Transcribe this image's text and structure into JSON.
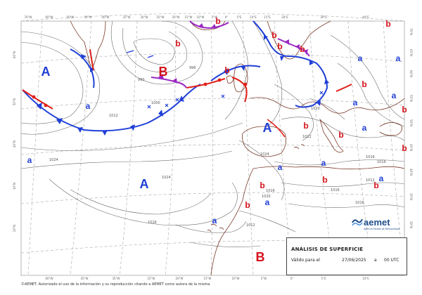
{
  "map": {
    "title": "ANÁLISIS DE SUPERFICIE",
    "valid_label": "Válido para el",
    "date": "27/06/2025",
    "at_label": "a",
    "time": "00 UTC",
    "copyright": "©AEMET. Autorizado el uso de la información y su reproducción citando a AEMET como autora de la misma",
    "logo_text": "aemet",
    "logo_sub": "Agencia Estatal de Meteorología",
    "colors": {
      "cold_front": "#1f3fd6",
      "warm_front": "#e0201a",
      "occluded_front": "#9b27c4",
      "high_label": "#1f3fd6",
      "low_label": "#d4121a",
      "coast": "#7a3a2a",
      "isobar": "#666666",
      "grid": "#9a9a9a"
    },
    "pressure_centers": [
      {
        "kind": "high",
        "text": "A"
      },
      {
        "kind": "high",
        "text": "A"
      },
      {
        "kind": "high",
        "text": "A"
      },
      {
        "kind": "low",
        "text": "B"
      },
      {
        "kind": "low",
        "text": "B"
      },
      {
        "kind": "high-small",
        "text": "a"
      },
      {
        "kind": "high-small",
        "text": "a"
      },
      {
        "kind": "high-small",
        "text": "a"
      },
      {
        "kind": "high-small",
        "text": "a"
      },
      {
        "kind": "high-small",
        "text": "a"
      },
      {
        "kind": "high-small",
        "text": "a"
      },
      {
        "kind": "high-small",
        "text": "a"
      },
      {
        "kind": "high-small",
        "text": "a"
      },
      {
        "kind": "high-small",
        "text": "a"
      },
      {
        "kind": "high-small",
        "text": "a"
      },
      {
        "kind": "high-small",
        "text": "a"
      },
      {
        "kind": "high-small",
        "text": "a"
      },
      {
        "kind": "low-small",
        "text": "b"
      },
      {
        "kind": "low-small",
        "text": "b"
      },
      {
        "kind": "low-small",
        "text": "b"
      },
      {
        "kind": "low-small",
        "text": "b"
      },
      {
        "kind": "low-small",
        "text": "b"
      },
      {
        "kind": "low-small",
        "text": "b"
      },
      {
        "kind": "low-small",
        "text": "b"
      },
      {
        "kind": "low-small",
        "text": "b"
      },
      {
        "kind": "low-small",
        "text": "b"
      },
      {
        "kind": "low-small",
        "text": "b"
      },
      {
        "kind": "low-small",
        "text": "b"
      },
      {
        "kind": "low-small",
        "text": "b"
      },
      {
        "kind": "low-small",
        "text": "b"
      },
      {
        "kind": "low-small",
        "text": "b"
      },
      {
        "kind": "low-small",
        "text": "b"
      },
      {
        "kind": "low-small",
        "text": "b"
      }
    ],
    "isobar_labels": [
      "1012",
      "1000",
      "990",
      "1024",
      "1012",
      "1024",
      "1020",
      "1016",
      "1016",
      "1020",
      "1012",
      "1024",
      "1016",
      "1016",
      "1016",
      "1016",
      "996",
      "1012"
    ],
    "lon_ticks_top": [
      "70°W",
      "60°W",
      "50°W",
      "45°W",
      "40°W",
      "35°W",
      "30°W",
      "25°W",
      "20°W",
      "15°W",
      "10°W",
      "5°W",
      "0°",
      "5°E",
      "10°E",
      "15°E",
      "20°E",
      "30°E",
      "40°E"
    ],
    "lon_ticks_bottom": [
      "60°W",
      "45°W",
      "35°W",
      "25°W",
      "20°W",
      "15°W",
      "10°W",
      "5°W",
      "0°",
      "5°E",
      "10°E"
    ],
    "lat_ticks_left": [
      "60°N",
      "50°N",
      "40°N",
      "30°N",
      "20°N"
    ],
    "lat_ticks_right": [
      "70°N",
      "65°N",
      "60°N",
      "55°N",
      "50°N",
      "45°N",
      "40°N",
      "35°N",
      "30°N"
    ]
  }
}
